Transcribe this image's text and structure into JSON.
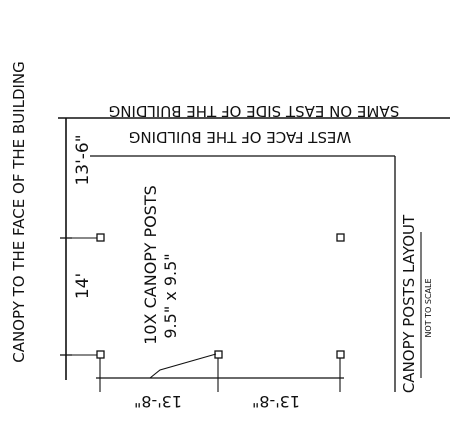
{
  "drawing": {
    "side_title": "CANOPY TO THE FACE OF THE BUILDING",
    "top_note": "SAME ON EAST SIDE OF THE BUILDING",
    "wall_label": "WEST FACE OF THE BUILDING",
    "vertical_dims": [
      "13'-6\"",
      "14'"
    ],
    "post_note_line1": "10X CANOPY POSTS",
    "post_note_line2": "9.5\" x 9.5\"",
    "bottom_dims": [
      "13'-8\"",
      "13'-8\""
    ],
    "layout_title": "CANOPY POSTS LAYOUT",
    "scale_note": "NOT TO SCALE"
  }
}
